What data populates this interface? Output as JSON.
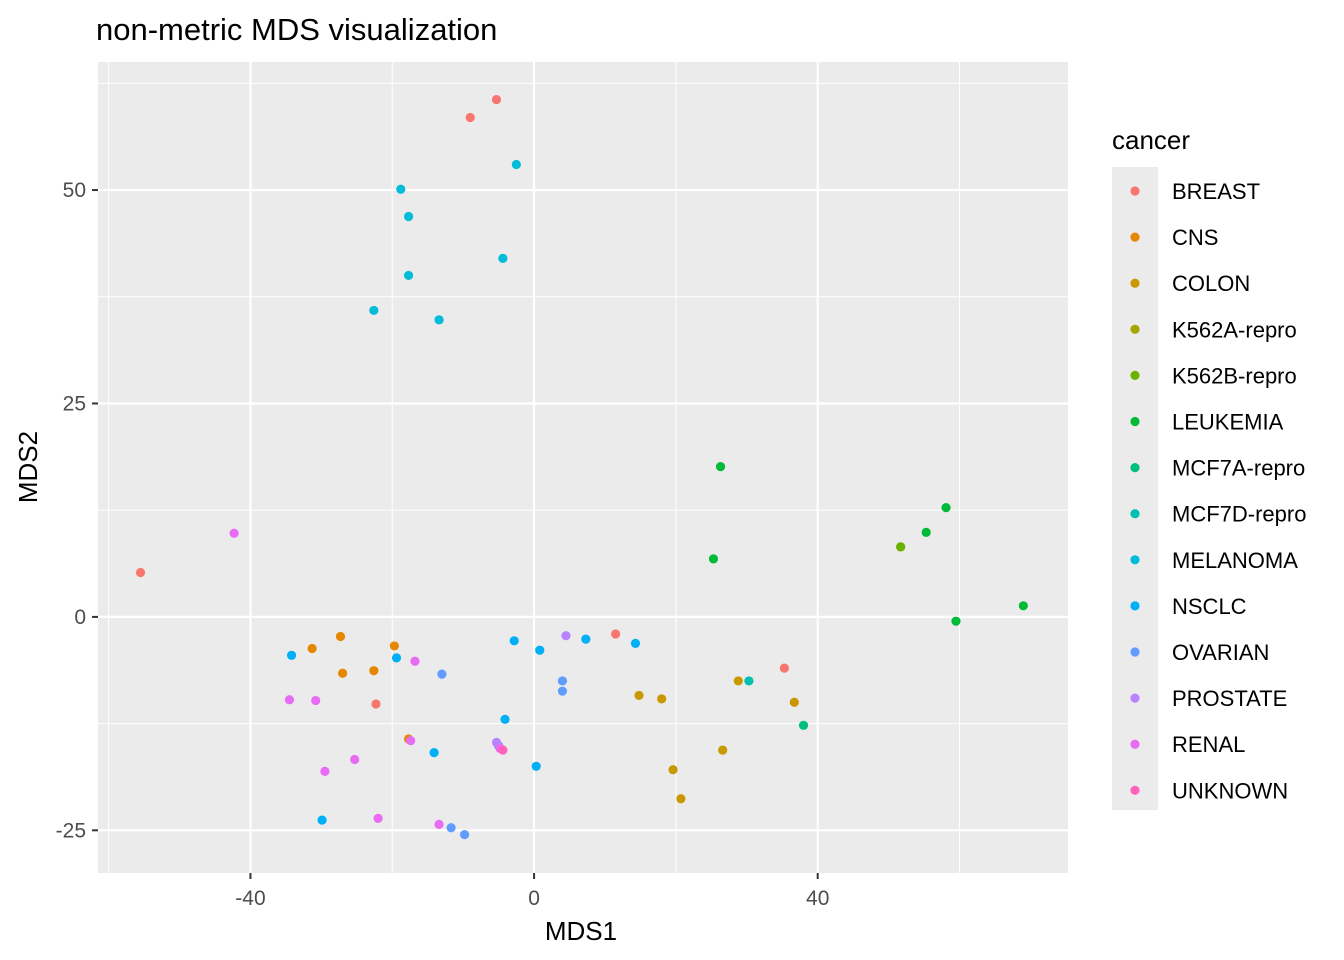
{
  "chart_data": {
    "type": "scatter",
    "title": "non-metric MDS visualization",
    "xlabel": "MDS1",
    "ylabel": "MDS2",
    "xlim": [
      -61.5,
      75.3
    ],
    "ylim": [
      -30.0,
      65.0
    ],
    "x_ticks": [
      -40,
      0,
      40
    ],
    "y_ticks": [
      -25,
      0,
      25,
      50
    ],
    "x_tick_labels": [
      "-40",
      "0",
      "40"
    ],
    "y_tick_labels": [
      "-25",
      "0",
      "25",
      "50"
    ],
    "grid": true,
    "legend": {
      "title": "cancer",
      "position": "right",
      "entries": [
        "BREAST",
        "CNS",
        "COLON",
        "K562A-repro",
        "K562B-repro",
        "LEUKEMIA",
        "MCF7A-repro",
        "MCF7D-repro",
        "MELANOMA",
        "NSCLC",
        "OVARIAN",
        "PROSTATE",
        "RENAL",
        "UNKNOWN"
      ]
    },
    "series": [
      {
        "name": "BREAST",
        "color": "#F8766D",
        "points": [
          [
            -5.3,
            60.6
          ],
          [
            -9.0,
            58.5
          ],
          [
            -55.5,
            5.2
          ],
          [
            11.5,
            -2.0
          ],
          [
            35.3,
            -6.0
          ],
          [
            -22.3,
            -10.2
          ]
        ]
      },
      {
        "name": "CNS",
        "color": "#E58700",
        "points": [
          [
            -27.3,
            -2.3
          ],
          [
            -19.7,
            -3.4
          ],
          [
            -31.3,
            -3.7
          ],
          [
            -22.6,
            -6.3
          ],
          [
            -27.0,
            -6.6
          ],
          [
            -17.7,
            -14.3
          ]
        ]
      },
      {
        "name": "COLON",
        "color": "#C99800",
        "points": [
          [
            14.8,
            -9.2
          ],
          [
            18.0,
            -9.6
          ],
          [
            28.8,
            -7.5
          ],
          [
            36.7,
            -10.0
          ],
          [
            26.6,
            -15.6
          ],
          [
            19.6,
            -17.9
          ],
          [
            20.7,
            -21.3
          ]
        ]
      },
      {
        "name": "K562A-repro",
        "color": "#A3A500",
        "points": [
          [
            51.7,
            8.2
          ]
        ]
      },
      {
        "name": "K562B-repro",
        "color": "#6BB100",
        "points": [
          [
            51.7,
            8.2
          ]
        ]
      },
      {
        "name": "LEUKEMIA",
        "color": "#00BA38",
        "points": [
          [
            26.3,
            17.6
          ],
          [
            25.3,
            6.8
          ],
          [
            58.1,
            12.8
          ],
          [
            55.3,
            9.9
          ],
          [
            69.0,
            1.3
          ],
          [
            59.5,
            -0.5
          ]
        ]
      },
      {
        "name": "MCF7A-repro",
        "color": "#00BF7D",
        "points": [
          [
            38.0,
            -12.7
          ]
        ]
      },
      {
        "name": "MCF7D-repro",
        "color": "#00C0AF",
        "points": [
          [
            30.3,
            -7.5
          ]
        ]
      },
      {
        "name": "MELANOMA",
        "color": "#00BCD8",
        "points": [
          [
            -2.5,
            53.0
          ],
          [
            -18.8,
            50.1
          ],
          [
            -17.7,
            46.9
          ],
          [
            -4.4,
            42.0
          ],
          [
            -17.7,
            40.0
          ],
          [
            -22.6,
            35.9
          ],
          [
            -13.4,
            34.8
          ]
        ]
      },
      {
        "name": "NSCLC",
        "color": "#00B0F6",
        "points": [
          [
            -2.8,
            -2.8
          ],
          [
            0.8,
            -3.9
          ],
          [
            7.3,
            -2.6
          ],
          [
            14.3,
            -3.1
          ],
          [
            -19.4,
            -4.8
          ],
          [
            -34.2,
            -4.5
          ],
          [
            -4.1,
            -12.0
          ],
          [
            -14.1,
            -15.9
          ],
          [
            0.3,
            -17.5
          ],
          [
            -29.9,
            -23.8
          ]
        ]
      },
      {
        "name": "OVARIAN",
        "color": "#619CFF",
        "points": [
          [
            -13.0,
            -6.7
          ],
          [
            4.0,
            -7.5
          ],
          [
            4.0,
            -8.7
          ],
          [
            -5.0,
            -15.1
          ],
          [
            -11.7,
            -24.7
          ],
          [
            -9.8,
            -25.5
          ]
        ]
      },
      {
        "name": "PROSTATE",
        "color": "#B983FF",
        "points": [
          [
            4.5,
            -2.2
          ],
          [
            -5.3,
            -14.7
          ]
        ]
      },
      {
        "name": "RENAL",
        "color": "#E76BF3",
        "points": [
          [
            -42.3,
            9.8
          ],
          [
            -16.8,
            -5.2
          ],
          [
            -34.5,
            -9.7
          ],
          [
            -30.8,
            -9.8
          ],
          [
            -17.4,
            -14.5
          ],
          [
            -4.8,
            -15.4
          ],
          [
            -25.3,
            -16.7
          ],
          [
            -29.5,
            -18.1
          ],
          [
            -22.0,
            -23.6
          ],
          [
            -13.4,
            -24.3
          ]
        ]
      },
      {
        "name": "UNKNOWN",
        "color": "#FF62BC",
        "points": [
          [
            -4.4,
            -15.6
          ]
        ]
      }
    ]
  }
}
